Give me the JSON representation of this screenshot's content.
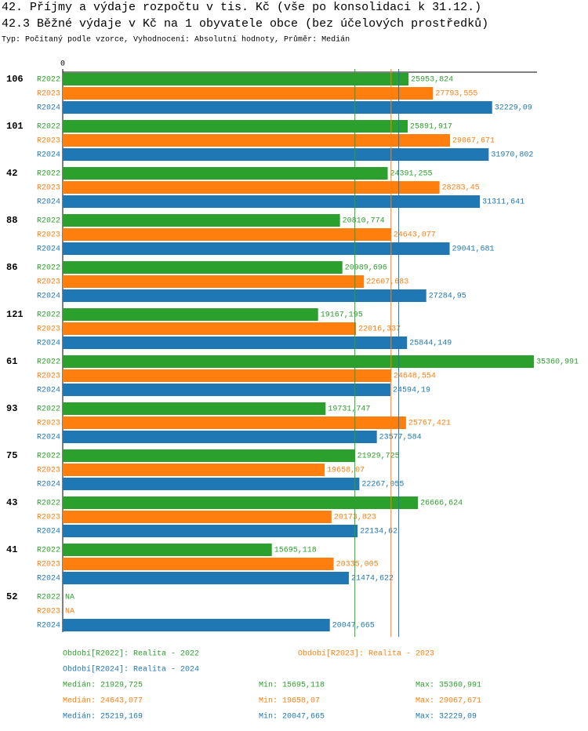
{
  "chart_data": {
    "type": "hbar",
    "title": "42. Příjmy a výdaje rozpočtu v tis. Kč (vše po konsolidaci k 31.12.)",
    "subtitle": "42.3 Běžné výdaje v Kč na 1 obyvatele obce (bez účelových prostředků)",
    "note": "Typ: Počítaný podle vzorce, Vyhodnocení: Absolutní hodnoty, Průměr: Medián",
    "categories": [
      "106",
      "101",
      "42",
      "88",
      "86",
      "121",
      "61",
      "93",
      "75",
      "43",
      "41",
      "52"
    ],
    "xlim": [
      0,
      35600
    ],
    "xticks": [
      0
    ],
    "series": [
      {
        "name": "R2022",
        "color": "#2ca02c",
        "label": "Období[R2022]: Realita - 2022",
        "values": [
          25953.824,
          25891.917,
          24391.255,
          20810.774,
          20989.696,
          19167.195,
          35360.991,
          19731.747,
          21929.725,
          26666.624,
          15695.118,
          null
        ],
        "value_labels": [
          "25953,824",
          "25891,917",
          "24391,255",
          "20810,774",
          "20989,696",
          "19167,195",
          "35360,991",
          "19731,747",
          "21929,725",
          "26666,624",
          "15695,118",
          "NA"
        ],
        "stats": {
          "median": {
            "value": 21929.725,
            "label": "Medián: 21929,725"
          },
          "min": {
            "value": 15695.118,
            "label": "Min: 15695,118"
          },
          "max": {
            "value": 35360.991,
            "label": "Max: 35360,991"
          }
        }
      },
      {
        "name": "R2023",
        "color": "#ff7f0e",
        "label": "Období[R2023]: Realita - 2023",
        "values": [
          27793.555,
          29067.671,
          28283.45,
          24643.077,
          22607.683,
          22016.337,
          24648.554,
          25767.421,
          19658.07,
          20173.823,
          20335.005,
          null
        ],
        "value_labels": [
          "27793,555",
          "29067,671",
          "28283,45",
          "24643,077",
          "22607,683",
          "22016,337",
          "24648,554",
          "25767,421",
          "19658,07",
          "20173,823",
          "20335,005",
          "NA"
        ],
        "stats": {
          "median": {
            "value": 24643.077,
            "label": "Medián: 24643,077"
          },
          "min": {
            "value": 19658.07,
            "label": "Min: 19658,07"
          },
          "max": {
            "value": 29067.671,
            "label": "Max: 29067,671"
          }
        }
      },
      {
        "name": "R2024",
        "color": "#1f77b4",
        "label": "Období[R2024]: Realita - 2024",
        "values": [
          32229.09,
          31970.802,
          31311.641,
          29041.681,
          27284.95,
          25844.149,
          24594.19,
          23577.584,
          22267.055,
          22134.62,
          21474.622,
          20047.665
        ],
        "value_labels": [
          "32229,09",
          "31970,802",
          "31311,641",
          "29041,681",
          "27284,95",
          "25844,149",
          "24594,19",
          "23577,584",
          "22267,055",
          "22134,62",
          "21474,622",
          "20047,665"
        ],
        "stats": {
          "median": {
            "value": 25219.169,
            "label": "Medián: 25219,169"
          },
          "min": {
            "value": 20047.665,
            "label": "Min: 20047,665"
          },
          "max": {
            "value": 32229.09,
            "label": "Max: 32229,09"
          }
        }
      }
    ]
  }
}
